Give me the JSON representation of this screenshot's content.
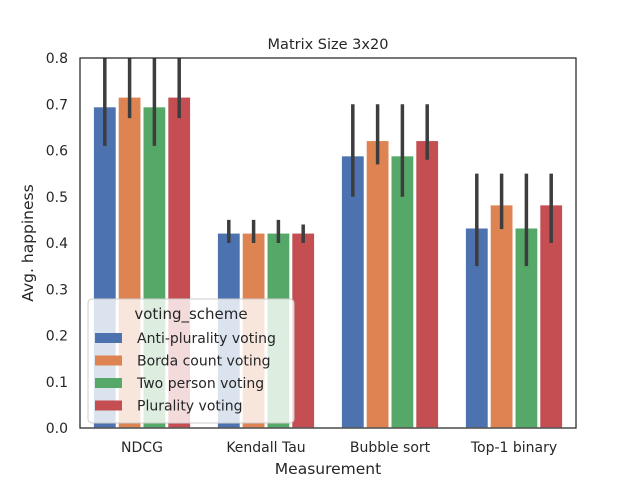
{
  "chart_data": {
    "type": "bar",
    "title": "Matrix Size 3x20",
    "xlabel": "Measurement",
    "ylabel": "Avg. happiness",
    "ylim": [
      0,
      0.8
    ],
    "yticks": [
      "0.0",
      "0.1",
      "0.2",
      "0.3",
      "0.4",
      "0.5",
      "0.6",
      "0.7",
      "0.8"
    ],
    "categories": [
      "NDCG",
      "Kendall Tau",
      "Bubble sort",
      "Top-1 binary"
    ],
    "legend_title": "voting_scheme",
    "legend_position": "lower-left",
    "series": [
      {
        "name": "Anti-plurality voting",
        "color": "#4c72b0",
        "values": [
          0.695,
          0.422,
          0.589,
          0.433
        ],
        "ci": [
          [
            0.61,
            0.8
          ],
          [
            0.4,
            0.45
          ],
          [
            0.5,
            0.7
          ],
          [
            0.35,
            0.55
          ]
        ]
      },
      {
        "name": "Borda count voting",
        "color": "#dd8452",
        "values": [
          0.716,
          0.422,
          0.622,
          0.483
        ],
        "ci": [
          [
            0.67,
            0.8
          ],
          [
            0.4,
            0.45
          ],
          [
            0.57,
            0.7
          ],
          [
            0.43,
            0.55
          ]
        ]
      },
      {
        "name": "Two person voting",
        "color": "#55a868",
        "values": [
          0.695,
          0.422,
          0.589,
          0.433
        ],
        "ci": [
          [
            0.61,
            0.8
          ],
          [
            0.4,
            0.45
          ],
          [
            0.5,
            0.7
          ],
          [
            0.35,
            0.55
          ]
        ]
      },
      {
        "name": "Plurality voting",
        "color": "#c44e52",
        "values": [
          0.716,
          0.422,
          0.622,
          0.483
        ],
        "ci": [
          [
            0.67,
            0.8
          ],
          [
            0.4,
            0.44
          ],
          [
            0.58,
            0.7
          ],
          [
            0.4,
            0.55
          ]
        ]
      }
    ]
  }
}
